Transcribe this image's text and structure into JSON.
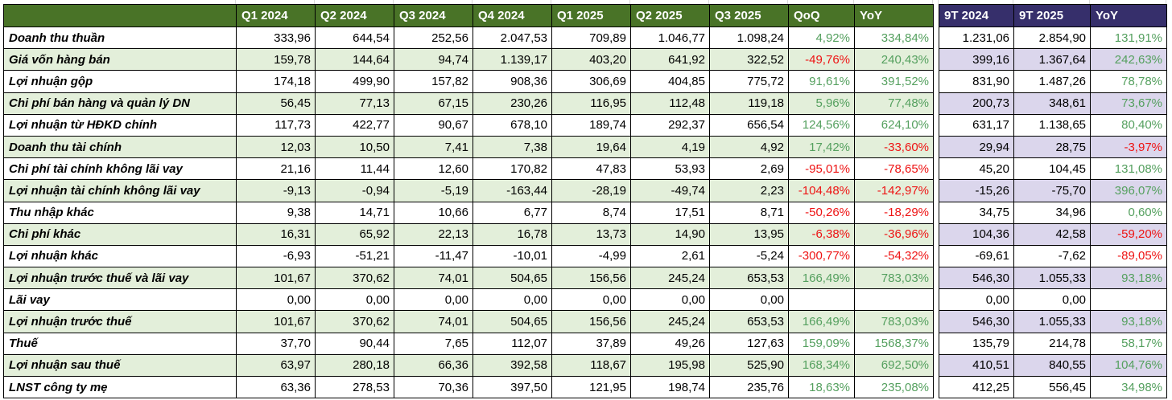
{
  "colors": {
    "header_green": "#497327",
    "header_purple": "#362f6b",
    "stripe_green": "#e3efda",
    "stripe_purple": "#dbd6ec",
    "positive_text": "#55a05f",
    "negative_text": "#ee1414",
    "border": "#000000"
  },
  "chart_data": {
    "type": "table",
    "columns": [
      "",
      "Q1 2024",
      "Q2 2024",
      "Q3 2024",
      "Q4 2024",
      "Q1 2025",
      "Q2 2025",
      "Q3 2025",
      "QoQ",
      "YoY",
      "9T 2024",
      "9T 2025",
      "YoY"
    ],
    "column_ids": [
      "label",
      "q1-2024",
      "q2-2024",
      "q3-2024",
      "q4-2024",
      "q1-2025",
      "q2-2025",
      "q3-2025",
      "qoq",
      "yoy",
      "9t-2024",
      "9t-2025",
      "yoy-9t"
    ],
    "rows": [
      {
        "label": "Doanh thu thuần",
        "q": [
          "333,96",
          "644,54",
          "252,56",
          "2.047,53",
          "709,89",
          "1.046,77",
          "1.098,24"
        ],
        "qoq": "4,92%",
        "qoq_color": "pos",
        "yoy": "334,84%",
        "yoy_color": "pos",
        "n9_2024": "1.231,06",
        "n9_2025": "2.854,90",
        "yoy9": "131,91%",
        "yoy9_color": "pos"
      },
      {
        "label": "Giá vốn hàng bán",
        "q": [
          "159,78",
          "144,64",
          "94,74",
          "1.139,17",
          "403,20",
          "641,92",
          "322,52"
        ],
        "qoq": "-49,76%",
        "qoq_color": "neg",
        "yoy": "240,43%",
        "yoy_color": "pos",
        "n9_2024": "399,16",
        "n9_2025": "1.367,64",
        "yoy9": "242,63%",
        "yoy9_color": "pos"
      },
      {
        "label": "Lợi nhuận gộp",
        "q": [
          "174,18",
          "499,90",
          "157,82",
          "908,36",
          "306,69",
          "404,85",
          "775,72"
        ],
        "qoq": "91,61%",
        "qoq_color": "pos",
        "yoy": "391,52%",
        "yoy_color": "pos",
        "n9_2024": "831,90",
        "n9_2025": "1.487,26",
        "yoy9": "78,78%",
        "yoy9_color": "pos"
      },
      {
        "label": "Chi phí bán hàng và quản lý DN",
        "q": [
          "56,45",
          "77,13",
          "67,15",
          "230,26",
          "116,95",
          "112,48",
          "119,18"
        ],
        "qoq": "5,96%",
        "qoq_color": "pos",
        "yoy": "77,48%",
        "yoy_color": "pos",
        "n9_2024": "200,73",
        "n9_2025": "348,61",
        "yoy9": "73,67%",
        "yoy9_color": "pos"
      },
      {
        "label": "Lợi nhuận từ HĐKD chính",
        "q": [
          "117,73",
          "422,77",
          "90,67",
          "678,10",
          "189,74",
          "292,37",
          "656,54"
        ],
        "qoq": "124,56%",
        "qoq_color": "pos",
        "yoy": "624,10%",
        "yoy_color": "pos",
        "n9_2024": "631,17",
        "n9_2025": "1.138,65",
        "yoy9": "80,40%",
        "yoy9_color": "pos"
      },
      {
        "label": "Doanh thu tài chính",
        "q": [
          "12,03",
          "10,50",
          "7,41",
          "7,38",
          "19,64",
          "4,19",
          "4,92"
        ],
        "qoq": "17,42%",
        "qoq_color": "pos",
        "yoy": "-33,60%",
        "yoy_color": "neg",
        "n9_2024": "29,94",
        "n9_2025": "28,75",
        "yoy9": "-3,97%",
        "yoy9_color": "neg"
      },
      {
        "label": "Chi phí tài chính không lãi vay",
        "q": [
          "21,16",
          "11,44",
          "12,60",
          "170,82",
          "47,83",
          "53,93",
          "2,69"
        ],
        "qoq": "-95,01%",
        "qoq_color": "neg",
        "yoy": "-78,65%",
        "yoy_color": "neg",
        "n9_2024": "45,20",
        "n9_2025": "104,45",
        "yoy9": "131,08%",
        "yoy9_color": "pos"
      },
      {
        "label": "Lợi nhuận tài chính không lãi vay",
        "q": [
          "-9,13",
          "-0,94",
          "-5,19",
          "-163,44",
          "-28,19",
          "-49,74",
          "2,23"
        ],
        "qoq": "-104,48%",
        "qoq_color": "neg",
        "yoy": "-142,97%",
        "yoy_color": "neg",
        "n9_2024": "-15,26",
        "n9_2025": "-75,70",
        "yoy9": "396,07%",
        "yoy9_color": "pos"
      },
      {
        "label": "Thu nhập khác",
        "q": [
          "9,38",
          "14,71",
          "10,66",
          "6,77",
          "8,74",
          "17,51",
          "8,71"
        ],
        "qoq": "-50,26%",
        "qoq_color": "neg",
        "yoy": "-18,29%",
        "yoy_color": "neg",
        "n9_2024": "34,75",
        "n9_2025": "34,96",
        "yoy9": "0,60%",
        "yoy9_color": "pos"
      },
      {
        "label": "Chi phí khác",
        "q": [
          "16,31",
          "65,92",
          "22,13",
          "16,78",
          "13,73",
          "14,90",
          "13,95"
        ],
        "qoq": "-6,38%",
        "qoq_color": "neg",
        "yoy": "-36,96%",
        "yoy_color": "neg",
        "n9_2024": "104,36",
        "n9_2025": "42,58",
        "yoy9": "-59,20%",
        "yoy9_color": "neg"
      },
      {
        "label": "Lợi nhuận khác",
        "q": [
          "-6,93",
          "-51,21",
          "-11,47",
          "-10,01",
          "-4,99",
          "2,61",
          "-5,24"
        ],
        "qoq": "-300,77%",
        "qoq_color": "neg",
        "yoy": "-54,32%",
        "yoy_color": "neg",
        "n9_2024": "-69,61",
        "n9_2025": "-7,62",
        "yoy9": "-89,05%",
        "yoy9_color": "neg"
      },
      {
        "label": "Lợi nhuận trước thuế và lãi vay",
        "q": [
          "101,67",
          "370,62",
          "74,01",
          "504,65",
          "156,56",
          "245,24",
          "653,53"
        ],
        "qoq": "166,49%",
        "qoq_color": "pos",
        "yoy": "783,03%",
        "yoy_color": "pos",
        "n9_2024": "546,30",
        "n9_2025": "1.055,33",
        "yoy9": "93,18%",
        "yoy9_color": "pos"
      },
      {
        "label": "Lãi vay",
        "q": [
          "0,00",
          "0,00",
          "0,00",
          "0,00",
          "0,00",
          "0,00",
          "0,00"
        ],
        "qoq": "",
        "qoq_color": null,
        "yoy": "",
        "yoy_color": null,
        "n9_2024": "0,00",
        "n9_2025": "0,00",
        "yoy9": "",
        "yoy9_color": null
      },
      {
        "label": "Lợi nhuận trước thuế",
        "q": [
          "101,67",
          "370,62",
          "74,01",
          "504,65",
          "156,56",
          "245,24",
          "653,53"
        ],
        "qoq": "166,49%",
        "qoq_color": "pos",
        "yoy": "783,03%",
        "yoy_color": "pos",
        "n9_2024": "546,30",
        "n9_2025": "1.055,33",
        "yoy9": "93,18%",
        "yoy9_color": "pos"
      },
      {
        "label": "Thuế",
        "q": [
          "37,70",
          "90,44",
          "7,65",
          "112,07",
          "37,89",
          "49,26",
          "127,63"
        ],
        "qoq": "159,09%",
        "qoq_color": "pos",
        "yoy": "1568,37%",
        "yoy_color": "pos",
        "n9_2024": "135,79",
        "n9_2025": "214,78",
        "yoy9": "58,17%",
        "yoy9_color": "pos"
      },
      {
        "label": "Lợi nhuận sau thuế",
        "q": [
          "63,97",
          "280,18",
          "66,36",
          "392,58",
          "118,67",
          "195,98",
          "525,90"
        ],
        "qoq": "168,34%",
        "qoq_color": "pos",
        "yoy": "692,50%",
        "yoy_color": "pos",
        "n9_2024": "410,51",
        "n9_2025": "840,55",
        "yoy9": "104,76%",
        "yoy9_color": "pos"
      },
      {
        "label": "LNST công ty mẹ",
        "q": [
          "63,36",
          "278,53",
          "70,36",
          "397,50",
          "121,95",
          "198,74",
          "235,76"
        ],
        "qoq": "18,63%",
        "qoq_color": "pos",
        "yoy": "235,08%",
        "yoy_color": "pos",
        "n9_2024": "412,25",
        "n9_2025": "556,45",
        "yoy9": "34,98%",
        "yoy9_color": "pos"
      }
    ]
  }
}
